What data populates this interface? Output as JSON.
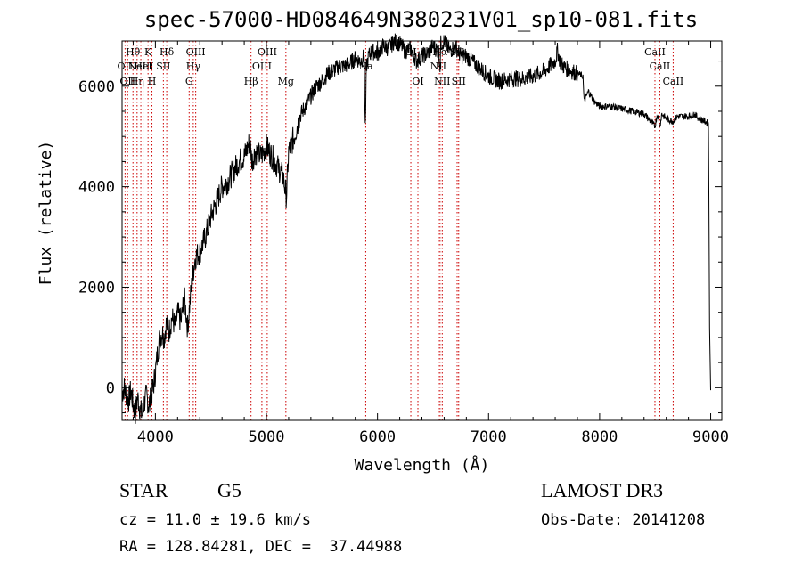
{
  "chart_data": {
    "type": "line",
    "title": "spec-57000-HD084649N380231V01_sp10-081.fits",
    "xlabel": "Wavelength (Å)",
    "ylabel": "Flux (relative)",
    "xlim": [
      3700,
      9100
    ],
    "ylim": [
      -650,
      6900
    ],
    "xticks": [
      4000,
      5000,
      6000,
      7000,
      8000,
      9000
    ],
    "xtick_labels": [
      "4000",
      "5000",
      "6000",
      "7000",
      "8000",
      "9000"
    ],
    "yticks": [
      0,
      2000,
      4000,
      6000
    ],
    "ytick_labels": [
      "0",
      "2000",
      "4000",
      "6000"
    ],
    "series": [
      {
        "name": "flux",
        "x": [
          3700,
          3720,
          3740,
          3760,
          3780,
          3800,
          3820,
          3840,
          3860,
          3880,
          3900,
          3920,
          3940,
          3960,
          3980,
          4000,
          4020,
          4040,
          4060,
          4080,
          4100,
          4120,
          4150,
          4180,
          4200,
          4230,
          4260,
          4290,
          4320,
          4340,
          4360,
          4400,
          4450,
          4500,
          4550,
          4600,
          4650,
          4700,
          4750,
          4800,
          4850,
          4870,
          4900,
          4950,
          5000,
          5050,
          5100,
          5150,
          5180,
          5200,
          5250,
          5300,
          5350,
          5400,
          5450,
          5500,
          5550,
          5600,
          5650,
          5700,
          5750,
          5800,
          5850,
          5880,
          5890,
          5900,
          5910,
          5920,
          5950,
          6000,
          6050,
          6100,
          6150,
          6200,
          6250,
          6300,
          6350,
          6400,
          6450,
          6500,
          6550,
          6563,
          6570,
          6600,
          6650,
          6700,
          6750,
          6800,
          6850,
          6900,
          6950,
          7000,
          7100,
          7200,
          7300,
          7400,
          7500,
          7600,
          7620,
          7650,
          7700,
          7800,
          7850,
          7860,
          7900,
          7950,
          8000,
          8100,
          8200,
          8300,
          8400,
          8498,
          8520,
          8542,
          8560,
          8600,
          8662,
          8700,
          8800,
          8850,
          8900,
          8950,
          8980,
          8990,
          9000
        ],
        "y": [
          -100,
          0,
          -150,
          -250,
          -50,
          -350,
          -500,
          -200,
          -400,
          -550,
          -300,
          -150,
          -350,
          -200,
          0,
          300,
          700,
          1000,
          1100,
          1000,
          1300,
          1100,
          1400,
          1200,
          1500,
          1300,
          1800,
          1200,
          1900,
          2300,
          2600,
          2700,
          3000,
          3400,
          3700,
          4000,
          4100,
          4300,
          4500,
          4600,
          4900,
          4500,
          4700,
          4600,
          4800,
          4600,
          4400,
          4200,
          3800,
          4700,
          5000,
          5400,
          5600,
          5800,
          6000,
          6100,
          6250,
          6300,
          6400,
          6400,
          6450,
          6550,
          6500,
          6600,
          5100,
          6400,
          6500,
          6600,
          6700,
          6650,
          6800,
          6750,
          6900,
          6850,
          6700,
          6750,
          6500,
          6600,
          6650,
          6800,
          6700,
          6400,
          6850,
          6900,
          6700,
          6800,
          6600,
          6600,
          6500,
          6400,
          6300,
          6200,
          6100,
          6150,
          6150,
          6200,
          6300,
          6500,
          6700,
          6450,
          6350,
          6250,
          6200,
          5700,
          5900,
          5700,
          5600,
          5600,
          5550,
          5500,
          5450,
          5200,
          5450,
          5200,
          5450,
          5350,
          5300,
          5400,
          5400,
          5450,
          5350,
          5300,
          5250,
          1200,
          -50
        ]
      }
    ],
    "line_markers": [
      {
        "wl": 3727,
        "label": "OII",
        "row": 1
      },
      {
        "wl": 3750,
        "label": "OII",
        "row": 2
      },
      {
        "wl": 3798,
        "label": "Hθ",
        "row": 0
      },
      {
        "wl": 3835,
        "label": "Hη",
        "row": 2
      },
      {
        "wl": 3869,
        "label": "NeIII",
        "row": 1
      },
      {
        "wl": 3889,
        "label": "HeI",
        "row": 1
      },
      {
        "wl": 3934,
        "label": "K",
        "row": 0
      },
      {
        "wl": 3969,
        "label": "H",
        "row": 2
      },
      {
        "wl": 4072,
        "label": "SII",
        "row": 1
      },
      {
        "wl": 4102,
        "label": "Hδ",
        "row": 0
      },
      {
        "wl": 4304,
        "label": "G",
        "row": 2
      },
      {
        "wl": 4341,
        "label": "Hγ",
        "row": 1
      },
      {
        "wl": 4363,
        "label": "OIII",
        "row": 0
      },
      {
        "wl": 4861,
        "label": "Hβ",
        "row": 2
      },
      {
        "wl": 4959,
        "label": "OIII",
        "row": 1
      },
      {
        "wl": 5007,
        "label": "OIII",
        "row": 0
      },
      {
        "wl": 5175,
        "label": "Mg",
        "row": 2
      },
      {
        "wl": 5894,
        "label": "Na",
        "row": 1
      },
      {
        "wl": 6300,
        "label": "OI",
        "row": 0
      },
      {
        "wl": 6364,
        "label": "OI",
        "row": 2
      },
      {
        "wl": 6548,
        "label": "NII",
        "row": 1
      },
      {
        "wl": 6563,
        "label": "Hα",
        "row": 0
      },
      {
        "wl": 6583,
        "label": "NII",
        "row": 2
      },
      {
        "wl": 6717,
        "label": "SII",
        "row": 0
      },
      {
        "wl": 6731,
        "label": "SII",
        "row": 2
      },
      {
        "wl": 8498,
        "label": "CaII",
        "row": 0
      },
      {
        "wl": 8542,
        "label": "CaII",
        "row": 1
      },
      {
        "wl": 8662,
        "label": "CaII",
        "row": 2
      }
    ]
  },
  "info": {
    "object_class": "STAR",
    "subclass": "G5",
    "survey": "LAMOST DR3",
    "redshift": "cz = 11.0 ± 19.6 km/s",
    "obs_date": "Obs-Date: 20141208",
    "coords": "RA = 128.84281, DEC =  37.44988"
  },
  "colors": {
    "line": "#000000",
    "marker": "#cc0000",
    "axis": "#000000"
  }
}
